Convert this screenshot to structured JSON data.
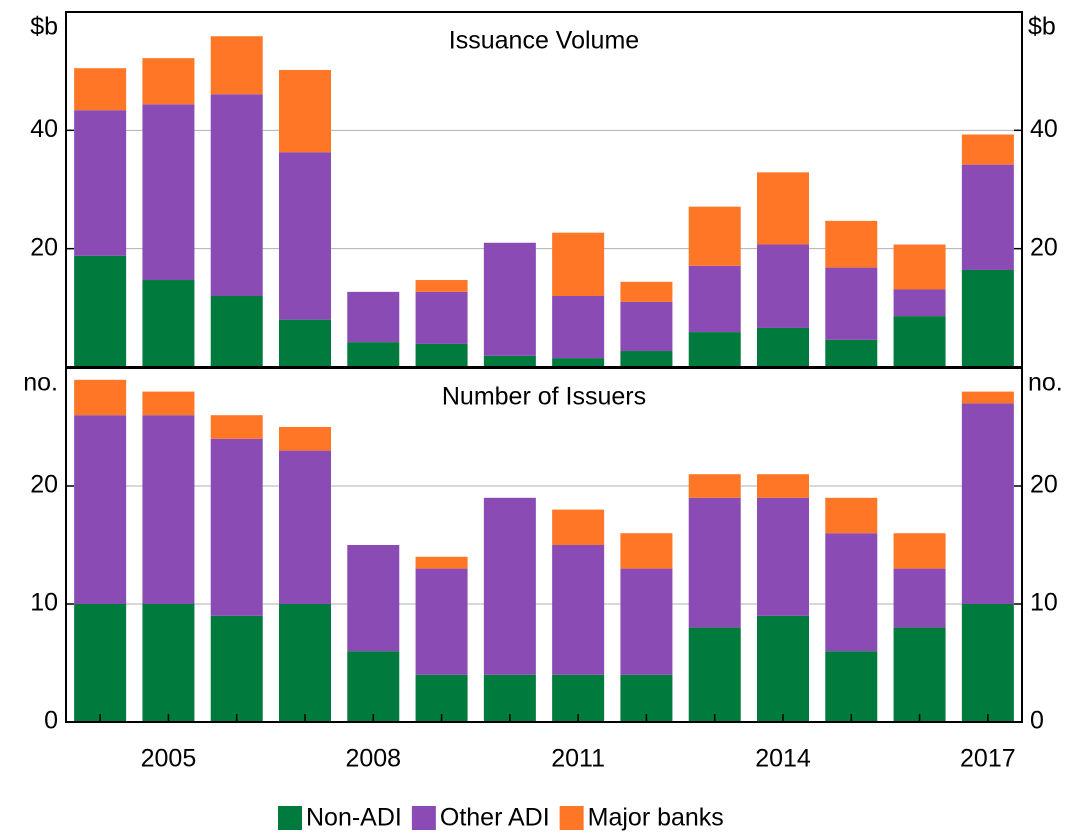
{
  "chart_data": [
    {
      "type": "bar",
      "stacked": true,
      "title": "Issuance Volume",
      "unit_label": "$b",
      "categories": [
        null,
        "2005",
        null,
        null,
        "2008",
        null,
        null,
        "2011",
        null,
        null,
        "2014",
        null,
        null,
        "2017"
      ],
      "series": [
        {
          "name": "Non-ADI",
          "color": "#007a3d",
          "values": [
            18.8,
            14.7,
            12.0,
            8.0,
            4.2,
            3.9,
            1.9,
            1.5,
            2.7,
            5.9,
            6.6,
            4.6,
            8.6,
            16.4
          ]
        },
        {
          "name": "Other ADI",
          "color": "#8a4bb5",
          "values": [
            24.6,
            29.7,
            34.1,
            28.3,
            8.5,
            8.8,
            19.1,
            10.5,
            8.3,
            11.2,
            14.1,
            12.2,
            4.5,
            17.8
          ]
        },
        {
          "name": "Major banks",
          "color": "#ff7626",
          "values": [
            7.1,
            7.8,
            9.8,
            13.9,
            0,
            2.0,
            0,
            10.7,
            3.4,
            10.0,
            12.2,
            7.9,
            7.6,
            5.1
          ]
        }
      ],
      "ylim": [
        0,
        60
      ],
      "yticks": [
        20,
        40
      ],
      "grid": true
    },
    {
      "type": "bar",
      "stacked": true,
      "title": "Number of Issuers",
      "unit_label": "no.",
      "series": [
        {
          "color": "#007a3d",
          "values": [
            10,
            10,
            9,
            10,
            6,
            4,
            4,
            4,
            4,
            8,
            9,
            6,
            8,
            10
          ]
        },
        {
          "color": "#8a4bb5",
          "values": [
            16,
            16,
            15,
            13,
            9,
            9,
            15,
            11,
            9,
            11,
            10,
            10,
            5,
            17
          ]
        },
        {
          "color": "#ff7626",
          "values": [
            3,
            2,
            2,
            2,
            0,
            1,
            0,
            3,
            3,
            2,
            2,
            3,
            3,
            1
          ]
        }
      ],
      "ylim": [
        0,
        30
      ],
      "yticks": [
        0,
        10,
        20
      ],
      "grid": true
    }
  ]
}
